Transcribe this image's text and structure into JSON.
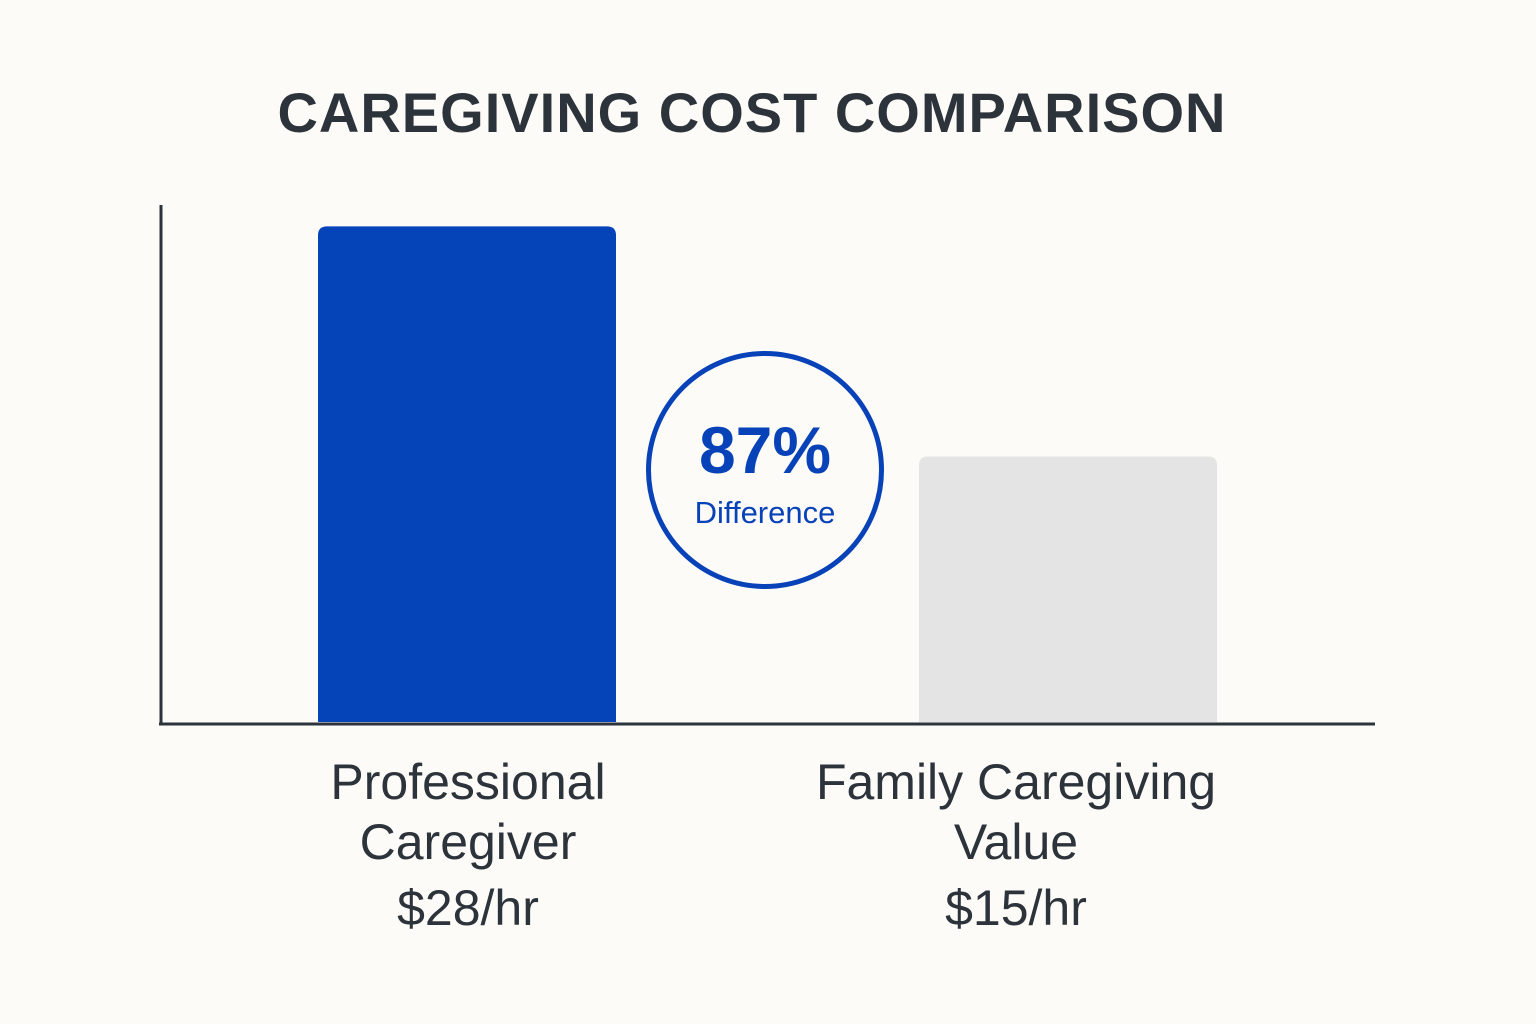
{
  "chart_data": {
    "type": "bar",
    "title": "CAREGIVING COST COMPARISON",
    "categories": [
      "Professional Caregiver",
      "Family Caregiving Value"
    ],
    "category_lines": [
      [
        "Professional",
        "Caregiver"
      ],
      [
        "Family Caregiving",
        "Value"
      ]
    ],
    "values": [
      28,
      15
    ],
    "value_labels": [
      "$28/hr",
      "$15/hr"
    ],
    "unit": "$/hr",
    "ylim": [
      0,
      30
    ],
    "grid": false,
    "colors": [
      "#0443b8",
      "#e4e4e4"
    ],
    "annotation": {
      "value": "87%",
      "label": "Difference"
    }
  }
}
